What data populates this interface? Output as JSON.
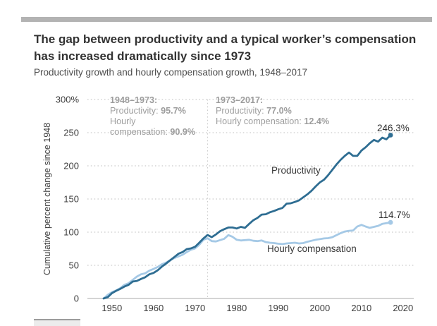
{
  "header": {
    "title": "The gap between productivity and a typical worker’s compensation has increased dramatically since 1973",
    "subtitle": "Productivity growth and hourly compensation growth, 1948–2017"
  },
  "annotations": {
    "pre1973": {
      "title": "1948–1973:",
      "productivity_label": "Productivity: ",
      "productivity_value": "95.7%",
      "compensation_label_line1": "Hourly",
      "compensation_label_line2": "compensation: ",
      "compensation_value": "90.9%"
    },
    "post1973": {
      "title": "1973–2017:",
      "productivity_label": "Productivity: ",
      "productivity_value": "77.0%",
      "compensation_label": "Hourly compensation: ",
      "compensation_value": "12.4%"
    }
  },
  "chart_data": {
    "type": "line",
    "title": "The gap between productivity and a typical worker’s compensation has increased dramatically since 1973",
    "subtitle": "Productivity growth and hourly compensation growth, 1948–2017",
    "ylabel": "Cumulative percent change since 1948",
    "xlabel": "",
    "xlim": [
      1948,
      2020
    ],
    "ylim": [
      0,
      300
    ],
    "grid": "dotted-horizontal",
    "legend_position": "inline-labels",
    "reference_line_x": 1973,
    "x_ticks": [
      1950,
      1960,
      1970,
      1980,
      1990,
      2000,
      2010,
      2020
    ],
    "y_ticks": [
      {
        "v": 0,
        "label": "0"
      },
      {
        "v": 50,
        "label": "50"
      },
      {
        "v": 100,
        "label": "100"
      },
      {
        "v": 150,
        "label": "150"
      },
      {
        "v": 200,
        "label": "200"
      },
      {
        "v": 250,
        "label": "250"
      },
      {
        "v": 300,
        "label": "300%"
      }
    ],
    "x": [
      1948,
      1949,
      1950,
      1951,
      1952,
      1953,
      1954,
      1955,
      1956,
      1957,
      1958,
      1959,
      1960,
      1961,
      1962,
      1963,
      1964,
      1965,
      1966,
      1967,
      1968,
      1969,
      1970,
      1971,
      1972,
      1973,
      1974,
      1975,
      1976,
      1977,
      1978,
      1979,
      1980,
      1981,
      1982,
      1983,
      1984,
      1985,
      1986,
      1987,
      1988,
      1989,
      1990,
      1991,
      1992,
      1993,
      1994,
      1995,
      1996,
      1997,
      1998,
      1999,
      2000,
      2001,
      2002,
      2003,
      2004,
      2005,
      2006,
      2007,
      2008,
      2009,
      2010,
      2011,
      2012,
      2013,
      2014,
      2015,
      2016,
      2017
    ],
    "series": [
      {
        "name": "Productivity",
        "color": "#2e6d92",
        "end_label": "246.3%",
        "values": [
          0,
          2,
          8,
          11.5,
          14.5,
          18,
          20.5,
          25.5,
          26.5,
          29.5,
          32,
          36.5,
          38.5,
          42.5,
          48,
          52.5,
          57.5,
          62.5,
          67.5,
          70,
          74.5,
          75.5,
          78,
          84,
          90.5,
          95.7,
          92.5,
          96.5,
          101.5,
          104.5,
          107,
          107,
          105.5,
          108,
          106.5,
          112.5,
          118,
          121.5,
          126.5,
          127,
          130,
          132,
          134.5,
          136.5,
          143,
          143.5,
          145.5,
          148,
          152.5,
          157,
          162.5,
          169,
          175,
          179,
          186,
          194,
          202,
          209,
          215,
          220,
          215,
          215,
          223,
          228,
          234,
          239,
          236.5,
          242.5,
          240,
          246.3
        ]
      },
      {
        "name": "Hourly compensation",
        "color": "#a5c9e6",
        "end_label": "114.7%",
        "values": [
          0,
          5.5,
          9.5,
          12,
          15.5,
          20.5,
          23,
          28,
          33,
          36.5,
          38,
          42,
          44.5,
          47.5,
          51.5,
          54,
          57.5,
          61,
          63.5,
          66,
          70,
          73.5,
          75.5,
          81,
          88.5,
          90.9,
          86.5,
          86,
          88,
          90,
          95.5,
          93,
          88.5,
          87.5,
          88,
          88.5,
          87,
          86.5,
          87.5,
          85,
          84,
          83.5,
          82.5,
          82,
          83,
          83.5,
          84,
          83,
          83.5,
          85.5,
          87,
          88.5,
          89.5,
          90.5,
          91,
          92.5,
          95.5,
          98.5,
          101,
          102,
          102.5,
          108.5,
          111,
          108.5,
          106.5,
          108,
          109.5,
          112.5,
          113.5,
          114.7
        ]
      }
    ]
  },
  "colors": {
    "top_bar": "#b3b3b3",
    "title_text": "#333333",
    "subtitle_text": "#4d4d4d",
    "annotation_text": "#9d9d9d",
    "tick_text": "#3d3d3d",
    "grid": "#cccccc",
    "axis": "#c6c6c6",
    "productivity": "#2e6d92",
    "compensation": "#a5c9e6"
  }
}
